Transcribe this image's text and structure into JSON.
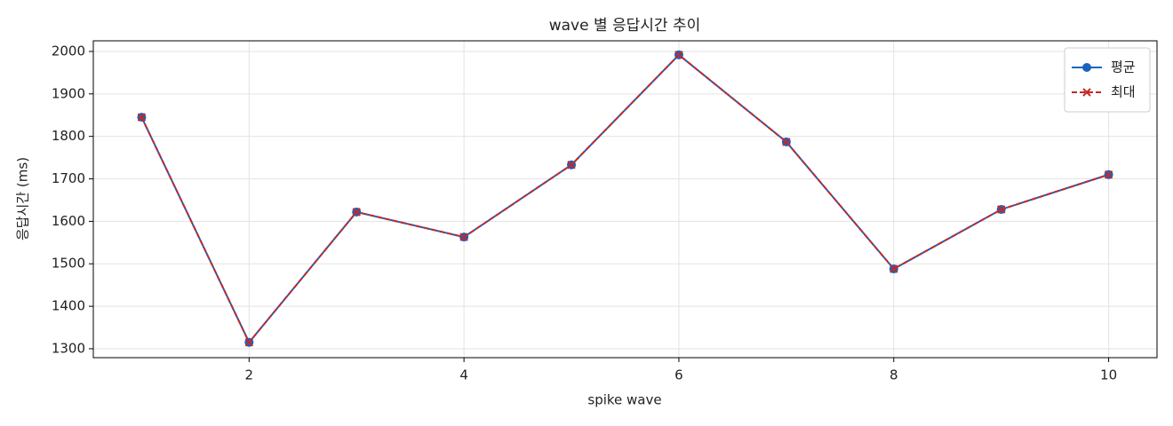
{
  "chart_data": {
    "type": "line",
    "title": "wave 별 응답시간 추이",
    "x_label": "spike wave",
    "y_label": "응답시간 (ms)",
    "x": [
      1,
      2,
      3,
      4,
      5,
      6,
      7,
      8,
      9,
      10
    ],
    "series": [
      {
        "name": "평균",
        "color": "#1565c0",
        "marker": "o",
        "linestyle": "solid",
        "values": [
          1845,
          1315,
          1622,
          1563,
          1733,
          1992,
          1787,
          1488,
          1628,
          1710
        ]
      },
      {
        "name": "최대",
        "color": "#c62828",
        "marker": "x",
        "linestyle": "dashed",
        "values": [
          1845,
          1315,
          1622,
          1563,
          1733,
          1992,
          1787,
          1488,
          1628,
          1710
        ]
      }
    ],
    "xlim": [
      0.55,
      10.45
    ],
    "xticks": [
      2,
      4,
      6,
      8,
      10
    ],
    "ylim": [
      1279,
      2025
    ],
    "yticks": [
      1300,
      1400,
      1500,
      1600,
      1700,
      1800,
      1900,
      2000
    ],
    "grid": true,
    "legend": "upper right"
  }
}
